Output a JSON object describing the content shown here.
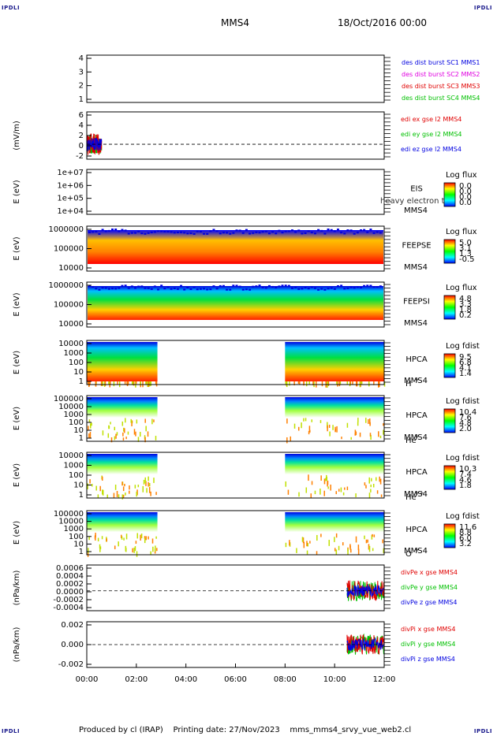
{
  "corners": {
    "tl": "IPDLI",
    "tr": "IPDLI",
    "bl": "IPDLI",
    "br": "IPDLI"
  },
  "header": {
    "spacecraft": "MMS4",
    "date": "18/Oct/2016 00:00"
  },
  "footer": {
    "produced": "Produced by cl (IRAP)",
    "printing": "Printing date: 27/Nov/2023",
    "file": "mms_mms4_srvy_vue_web2.cl"
  },
  "colors": {
    "red": "#e00000",
    "green": "#00c000",
    "blue": "#0000e0",
    "magenta": "#e000e0"
  },
  "chart_data": {
    "type": "heatmap",
    "x_tick_labels": [
      "00:00",
      "02:00",
      "04:00",
      "06:00",
      "08:00",
      "10:00",
      "12:00"
    ],
    "x_range_hours": [
      0,
      12
    ],
    "panels": [
      {
        "id": "bursts",
        "type": "line",
        "yticks": [
          "1",
          "2",
          "3",
          "4"
        ],
        "legend": [
          {
            "text": "des dist burst SC1 MMS1",
            "color": "#0000e0"
          },
          {
            "text": "des dist burst SC2 MMS2",
            "color": "#e000e0"
          },
          {
            "text": "des dist burst SC3 MMS3",
            "color": "#e00000"
          },
          {
            "text": "des dist burst SC4 MMS4",
            "color": "#00c000"
          }
        ]
      },
      {
        "id": "edi",
        "type": "line",
        "ylabel": "(mV/m)",
        "yticks": [
          "-2",
          "0",
          "2",
          "4",
          "6"
        ],
        "ylim": [
          -3,
          6.5
        ],
        "data_hours": [
          0,
          0.6
        ],
        "legend": [
          {
            "text": "edi ex gse l2 MMS4",
            "color": "#e00000"
          },
          {
            "text": "edi ey gse l2 MMS4",
            "color": "#00c000"
          },
          {
            "text": "edi ez gse l2 MMS4",
            "color": "#0000e0"
          }
        ]
      },
      {
        "id": "eis",
        "type": "heatmap",
        "ylabel": "E (eV)",
        "yticks": [
          "1e+04",
          "1e+05",
          "1e+06",
          "1e+07"
        ],
        "labels": [
          "EIS",
          "MMS4"
        ],
        "overlay": "heavy electron to",
        "cbar_title": "Log flux",
        "cbar_ticks": [
          "0.0",
          "0.0",
          "0.0",
          "0.0"
        ]
      },
      {
        "id": "feepse",
        "type": "heatmap",
        "ylabel": "E (eV)",
        "yticks": [
          "10000",
          "100000",
          "1000000"
        ],
        "labels": [
          "FEEPSE",
          "MMS4"
        ],
        "cbar_title": "Log flux",
        "cbar_ticks": [
          "5.0",
          "3.1",
          "1.3",
          "-0.5"
        ]
      },
      {
        "id": "feepsi",
        "type": "heatmap",
        "ylabel": "E (eV)",
        "yticks": [
          "10000",
          "100000",
          "1000000"
        ],
        "labels": [
          "FEEPSI",
          "MMS4"
        ],
        "cbar_title": "Log flux",
        "cbar_ticks": [
          "4.8",
          "3.3",
          "1.8",
          "0.2"
        ]
      },
      {
        "id": "hpca_h",
        "type": "heatmap",
        "ylabel": "E (eV)",
        "yticks": [
          "1",
          "10",
          "100",
          "1000",
          "10000"
        ],
        "labels": [
          "HPCA",
          "MMS4"
        ],
        "species": "H",
        "charge": "+",
        "cbar_title": "Log fdist",
        "cbar_ticks": [
          "9.5",
          "6.8",
          "4.1",
          "1.4"
        ],
        "data_hours": [
          [
            0,
            2.85
          ],
          [
            8,
            12
          ]
        ]
      },
      {
        "id": "hpca_he",
        "type": "heatmap",
        "ylabel": "E (eV)",
        "yticks": [
          "1",
          "10",
          "100",
          "1000",
          "10000",
          "100000"
        ],
        "labels": [
          "HPCA",
          "MMS4"
        ],
        "species": "He",
        "charge": "+",
        "cbar_title": "Log fdist",
        "cbar_ticks": [
          "10.4",
          "7.6",
          "4.8",
          "2.0"
        ],
        "data_hours": [
          [
            0,
            2.85
          ],
          [
            8,
            12
          ]
        ]
      },
      {
        "id": "hpca_hepp",
        "type": "heatmap",
        "ylabel": "E (eV)",
        "yticks": [
          "1",
          "10",
          "100",
          "1000",
          "10000"
        ],
        "labels": [
          "HPCA",
          "MMS4"
        ],
        "species": "He",
        "charge": "++",
        "cbar_title": "Log fdist",
        "cbar_ticks": [
          "10.3",
          "7.4",
          "4.6",
          "1.8"
        ],
        "data_hours": [
          [
            0,
            2.85
          ],
          [
            8,
            12
          ]
        ]
      },
      {
        "id": "hpca_o",
        "type": "heatmap",
        "ylabel": "E (eV)",
        "yticks": [
          "1",
          "10",
          "100",
          "1000",
          "10000",
          "100000"
        ],
        "labels": [
          "HPCA",
          "MMS4"
        ],
        "species": "O",
        "charge": "+",
        "cbar_title": "Log fdist",
        "cbar_ticks": [
          "11.6",
          "8.8",
          "6.0",
          "3.2"
        ],
        "data_hours": [
          [
            0,
            2.85
          ],
          [
            8,
            12
          ]
        ]
      },
      {
        "id": "divpe",
        "type": "line",
        "ylabel": "(nPa/km)",
        "yticks": [
          "-0.0004",
          "-0.0002",
          "0.0000",
          "0.0002",
          "0.0004",
          "0.0006"
        ],
        "ylim": [
          -0.0005,
          0.00065
        ],
        "data_hours": [
          10.5,
          12
        ],
        "legend": [
          {
            "text": "divPe x gse MMS4",
            "color": "#e00000"
          },
          {
            "text": "divPe y gse MMS4",
            "color": "#00c000"
          },
          {
            "text": "divPe z gse MMS4",
            "color": "#0000e0"
          }
        ]
      },
      {
        "id": "divpi",
        "type": "line",
        "ylabel": "(nPa/km)",
        "yticks": [
          "-0.002",
          "0.000",
          "0.002"
        ],
        "ylim": [
          -0.003,
          0.003
        ],
        "data_hours": [
          10.5,
          12
        ],
        "legend": [
          {
            "text": "divPi x gse MMS4",
            "color": "#e00000"
          },
          {
            "text": "divPi y gse MMS4",
            "color": "#00c000"
          },
          {
            "text": "divPi z gse MMS4",
            "color": "#0000e0"
          }
        ]
      }
    ]
  }
}
